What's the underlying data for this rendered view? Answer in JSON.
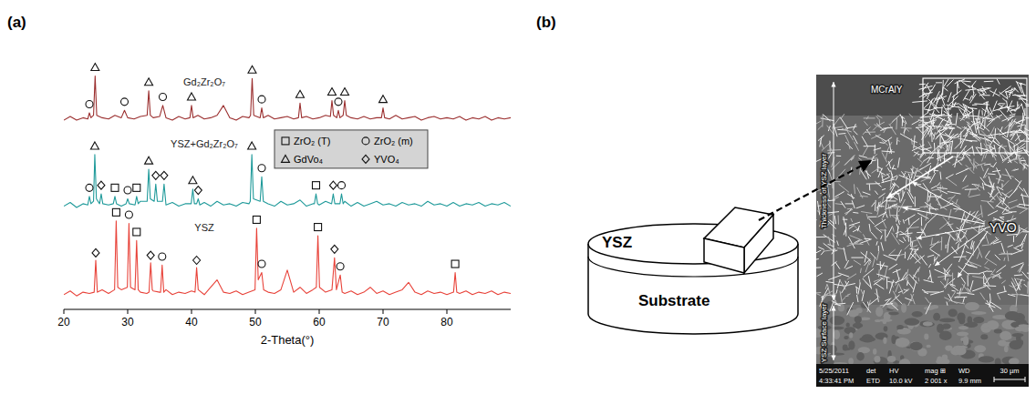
{
  "panels": [
    "(a)",
    "(b)"
  ],
  "chart_data": {
    "type": "line",
    "x_label": "2-Theta(°)",
    "xlim": [
      20,
      90
    ],
    "xticks": [
      20,
      30,
      40,
      50,
      60,
      70,
      80
    ],
    "ylim": [
      0,
      100
    ],
    "tick_labels": "x",
    "legend": "right",
    "series": [
      {
        "name": "Gd₂Zr₂O₇",
        "color": "#9b2f2f",
        "x": [
          20,
          21,
          22,
          23,
          23.75,
          24,
          24.25,
          24.65,
          24.9,
          25.15,
          26,
          27,
          28,
          29,
          29.5,
          30,
          31,
          32,
          33.05,
          33.3,
          33.55,
          34,
          35,
          35.5,
          36,
          37,
          38,
          39,
          39.75,
          40,
          40.25,
          41,
          42,
          43,
          44,
          45,
          46,
          47,
          48,
          49,
          49.25,
          49.5,
          49.75,
          50.75,
          51,
          51.25,
          52,
          53,
          54,
          55,
          56,
          56.75,
          57,
          57.25,
          58,
          59,
          60,
          61,
          61.75,
          62,
          62.25,
          62.75,
          63,
          63.25,
          63.75,
          64,
          64.25,
          65,
          66,
          67,
          68,
          69,
          69.75,
          70,
          70.25,
          71,
          72,
          73,
          74,
          75,
          76,
          77,
          78,
          79,
          80,
          81,
          82,
          83,
          84,
          85,
          86,
          87,
          88,
          89,
          90
        ],
        "values": [
          77,
          78.5,
          77,
          78,
          77.5,
          80,
          78,
          79,
          95,
          79,
          78,
          77.5,
          79,
          78,
          81,
          78,
          77.5,
          78.5,
          79,
          89,
          79,
          78,
          78.5,
          83,
          78,
          77,
          78.5,
          77.5,
          78,
          83,
          78,
          79,
          77.5,
          78,
          79,
          83,
          78,
          77,
          78.5,
          78,
          79,
          94,
          79,
          78,
          82,
          78,
          79,
          77.5,
          78,
          78.5,
          77.5,
          78,
          84,
          78,
          78.5,
          77.5,
          78,
          79,
          78.5,
          85,
          79,
          78,
          81,
          78,
          79,
          85,
          79,
          78,
          77.5,
          78.5,
          77.5,
          78,
          78,
          82,
          78,
          77.5,
          79,
          77.5,
          78,
          78.5,
          77,
          78,
          78.5,
          77.5,
          78,
          77.5,
          78.5,
          77,
          78,
          77.5,
          78.5,
          77,
          78,
          77.5,
          78
        ]
      },
      {
        "name": "YSZ+Gd₂Zr₂O₇",
        "color": "#1f9a9a",
        "x": [
          20,
          21,
          22,
          23,
          23.75,
          24,
          24.25,
          24.65,
          24.85,
          25.1,
          25.6,
          25.85,
          26.1,
          27,
          27.75,
          28,
          28.25,
          29,
          29.75,
          30,
          30.25,
          31.15,
          31.4,
          31.65,
          32,
          33.05,
          33.3,
          33.55,
          34.15,
          34.4,
          34.65,
          35.45,
          35.7,
          35.95,
          36,
          37,
          38,
          39,
          39.95,
          40.2,
          40.45,
          40.8,
          41.05,
          41.3,
          42,
          43,
          44,
          45,
          46,
          47,
          48,
          49,
          49.2,
          49.45,
          49.7,
          50.75,
          51,
          51.25,
          52,
          53,
          54,
          55,
          56,
          57,
          58,
          59,
          59.25,
          59.5,
          59.75,
          60,
          61,
          61.95,
          62.2,
          62.45,
          63.25,
          63.5,
          63.75,
          64,
          65,
          66,
          67,
          68,
          69,
          70,
          71,
          72,
          73,
          74,
          75,
          76,
          77,
          78,
          79,
          80,
          81,
          82,
          83,
          84,
          85,
          86,
          87,
          88,
          89,
          90
        ],
        "values": [
          42,
          43.5,
          41.5,
          43,
          42.5,
          46,
          43,
          44,
          63,
          45,
          43,
          47,
          43,
          42.5,
          43,
          46,
          43,
          42,
          43,
          45,
          43,
          42.5,
          46,
          43,
          44,
          44,
          57,
          45,
          44,
          51,
          44,
          44,
          51,
          44,
          42.5,
          43.5,
          42,
          43,
          43,
          49,
          43,
          43,
          45,
          42.5,
          43.5,
          42,
          44,
          42.5,
          43,
          42,
          43.5,
          43,
          44,
          63,
          45,
          44,
          54,
          44,
          43,
          42,
          44,
          42.5,
          43,
          44.5,
          42,
          43,
          43,
          47,
          43,
          42.5,
          44,
          43,
          47,
          43,
          43,
          47,
          43,
          44,
          42,
          43.5,
          42,
          43,
          44,
          42.5,
          43,
          42,
          43.5,
          42.5,
          43,
          42,
          44,
          42.5,
          43,
          42,
          43.5,
          42,
          43,
          42.5,
          43.5,
          42,
          43,
          42.5,
          43.5,
          42
        ]
      },
      {
        "name": "YSZ",
        "color": "#e8433a",
        "x": [
          20,
          21,
          22,
          23,
          24,
          24.75,
          25,
          25.25,
          26,
          27,
          27.95,
          28.2,
          28.45,
          29,
          29.95,
          30.2,
          30.45,
          31.15,
          31.4,
          31.65,
          32,
          33,
          33.35,
          33.6,
          33.85,
          34,
          35,
          35.15,
          35.4,
          35.65,
          36,
          37,
          38,
          39,
          40,
          40.55,
          40.8,
          41.05,
          42,
          43,
          44,
          45,
          46,
          47,
          48,
          49,
          49.95,
          50.2,
          50.45,
          51,
          51.3,
          52,
          53,
          54,
          55,
          56,
          57,
          58,
          59,
          59.55,
          59.8,
          60.05,
          61,
          62,
          62.4,
          62.7,
          63.3,
          63.6,
          64,
          65,
          66,
          67,
          68,
          69,
          70,
          71,
          72,
          73,
          74,
          75,
          76,
          77,
          78,
          79,
          80,
          81.05,
          81.3,
          81.55,
          82,
          83,
          84,
          85,
          86,
          87,
          88,
          89,
          90
        ],
        "values": [
          6,
          7.5,
          5.5,
          7,
          6.5,
          7,
          20,
          7,
          8,
          6.5,
          8,
          36,
          9,
          8,
          9,
          35,
          9,
          8,
          28,
          8,
          7,
          6.5,
          7,
          19,
          8,
          7.5,
          7,
          7,
          18,
          7,
          8,
          6,
          7,
          6.5,
          7.5,
          7,
          17,
          8,
          6,
          9,
          12,
          7,
          6.5,
          7.5,
          6,
          7,
          8,
          33,
          12,
          15,
          8,
          7,
          6.5,
          8,
          16,
          7,
          9,
          6.5,
          8,
          9,
          30,
          9,
          7,
          8,
          21,
          8,
          14,
          7,
          6.5,
          7.5,
          6,
          7,
          9,
          6.5,
          7.5,
          6,
          7,
          8,
          11,
          7,
          6,
          7.5,
          6.5,
          7,
          6,
          7,
          15,
          7,
          6.5,
          7.5,
          6,
          7,
          6.5,
          7.5,
          6,
          7,
          6.5
        ]
      }
    ],
    "phases": [
      {
        "name": "ZrO₂ (T)",
        "marker": "square",
        "x": [
          28.2,
          31.4,
          50.2,
          59.8,
          81.3,
          28,
          31.4,
          59.5
        ],
        "y": [
          39.5,
          31.5,
          36.5,
          33.5,
          18.5,
          49.5,
          49.5,
          50.5
        ]
      },
      {
        "name": "ZrO₂ (m)",
        "marker": "circle",
        "x": [
          30.2,
          35.4,
          51,
          63.3,
          24,
          30,
          51,
          63.5,
          24,
          29.5,
          35.5,
          51,
          63
        ],
        "y": [
          38.5,
          21.5,
          18.5,
          17.5,
          49.5,
          48.5,
          57.5,
          50.5,
          83.5,
          84.5,
          86.5,
          85.5,
          84.5
        ]
      },
      {
        "name": "GdVo₄",
        "marker": "triangle",
        "x": [
          24.85,
          33.3,
          40.2,
          49.45,
          24.9,
          33.3,
          40,
          49.5,
          57,
          62,
          64,
          70
        ],
        "y": [
          66.5,
          60.5,
          52.5,
          66.5,
          98.5,
          92.5,
          86.5,
          97.5,
          87.5,
          88.5,
          88.5,
          85.5
        ]
      },
      {
        "name": "YVO₄",
        "marker": "diamond",
        "x": [
          25,
          33.6,
          40.8,
          62.4,
          25.85,
          34.4,
          35.7,
          41.05,
          62.2
        ],
        "y": [
          23,
          22,
          20,
          24.5,
          50.5,
          54.5,
          54.5,
          48.5,
          50.5
        ]
      }
    ]
  },
  "schematic": {
    "coating": "YSZ",
    "substrate": "Substrate"
  },
  "micrograph": {
    "labels": {
      "top_layer": "MCrAlY",
      "thickness": "Thickness of YSZ layer",
      "surface": "YSZ Surface layer",
      "crystals": "YVO"
    },
    "info_bar": {
      "header": [
        "5/25/2011",
        "det",
        "HV",
        "mag ⊞",
        "WD"
      ],
      "values": [
        "4:33:41 PM",
        "ETD",
        "10.0 kV",
        "2 001 x",
        "9.9 mm"
      ]
    },
    "scale_bar": "30 µm"
  }
}
